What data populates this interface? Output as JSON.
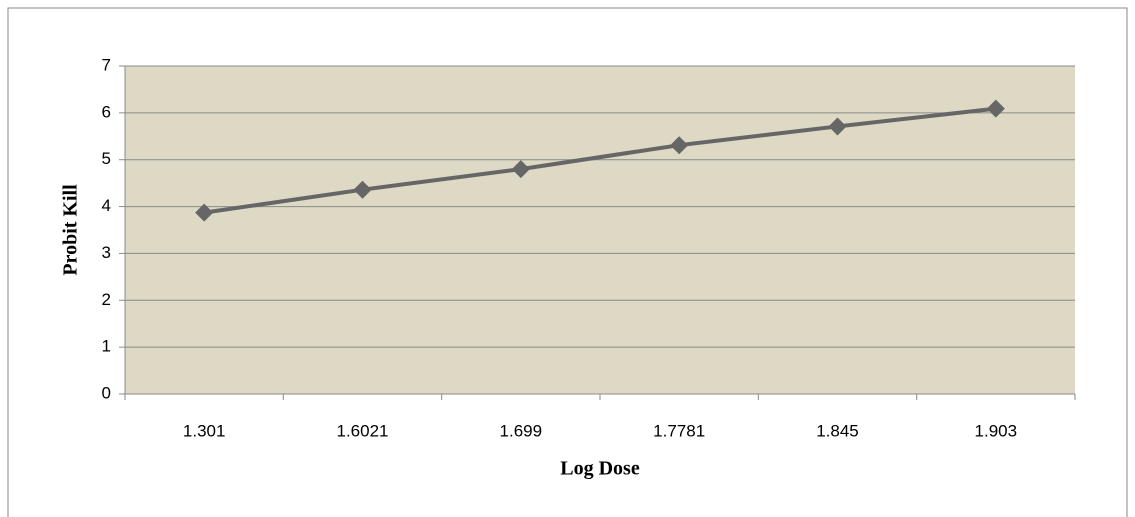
{
  "chart_data": {
    "type": "line",
    "categories": [
      "1.301",
      "1.6021",
      "1.699",
      "1.7781",
      "1.845",
      "1.903"
    ],
    "values": [
      3.87,
      4.36,
      4.8,
      5.31,
      5.71,
      6.09
    ],
    "color": "#666666",
    "xlabel": "Log Dose",
    "ylabel": "Probit Kill",
    "ylim": [
      0,
      7
    ],
    "yticks": [
      0,
      1,
      2,
      3,
      4,
      5,
      6,
      7
    ],
    "grid": true
  }
}
